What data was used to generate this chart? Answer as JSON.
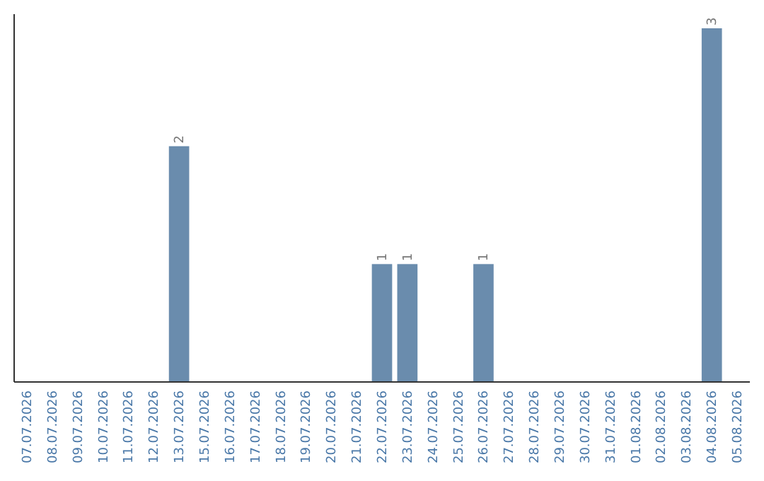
{
  "chart_data": {
    "type": "bar",
    "categories": [
      "07.07.2026",
      "08.07.2026",
      "09.07.2026",
      "10.07.2026",
      "11.07.2026",
      "12.07.2026",
      "13.07.2026",
      "15.07.2026",
      "16.07.2026",
      "17.07.2026",
      "18.07.2026",
      "19.07.2026",
      "20.07.2026",
      "21.07.2026",
      "22.07.2026",
      "23.07.2026",
      "24.07.2026",
      "25.07.2026",
      "26.07.2026",
      "27.07.2026",
      "28.07.2026",
      "29.07.2026",
      "30.07.2026",
      "31.07.2026",
      "01.08.2026",
      "02.08.2026",
      "03.08.2026",
      "04.08.2026",
      "05.08.2026"
    ],
    "values": [
      0,
      0,
      0,
      0,
      0,
      0,
      2,
      0,
      0,
      0,
      0,
      0,
      0,
      0,
      1,
      1,
      0,
      0,
      1,
      0,
      0,
      0,
      0,
      0,
      0,
      0,
      0,
      3,
      0
    ],
    "value_labels": [
      null,
      null,
      null,
      null,
      null,
      null,
      "2",
      null,
      null,
      null,
      null,
      null,
      null,
      null,
      "1",
      "1",
      null,
      null,
      "1",
      null,
      null,
      null,
      null,
      null,
      null,
      null,
      null,
      "3",
      null
    ],
    "color": "#6a8cad",
    "tick_labels": "x"
  }
}
